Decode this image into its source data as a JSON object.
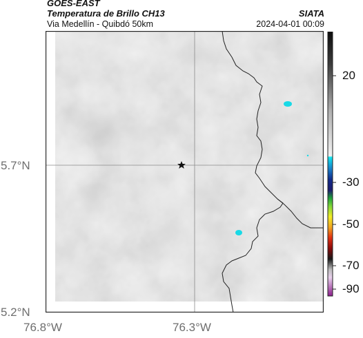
{
  "header": {
    "satellite": "GOES-EAST",
    "product": "Temperatura de Brillo CH13",
    "region": "Via Medellín - Quibdó 50km",
    "org": "SIATA",
    "datetime": "2024-04-01 00:09"
  },
  "axes": {
    "lat_ticks": [
      "5.7°N",
      "5.2°N"
    ],
    "lon_ticks": [
      "76.8°W",
      "76.3°W"
    ]
  },
  "colorbar": {
    "labels": [
      "20",
      "-30",
      "-50",
      "-70",
      "-90"
    ]
  },
  "colors": {
    "cold_cloud": "#19d9e6",
    "marker": "#111111",
    "border": "#222222"
  }
}
